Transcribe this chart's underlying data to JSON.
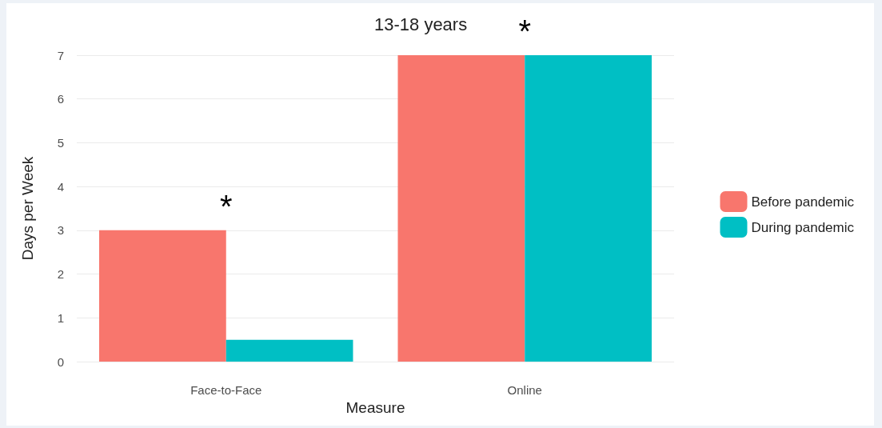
{
  "chart_data": {
    "type": "bar",
    "title": "13-18 years",
    "xlabel": "Measure",
    "ylabel": "Days per Week",
    "categories": [
      "Face-to-Face",
      "Online"
    ],
    "series": [
      {
        "name": "Before pandemic",
        "color": "#f8766d",
        "values": [
          3,
          7
        ]
      },
      {
        "name": "During pandemic",
        "color": "#00bfc4",
        "values": [
          0.5,
          7
        ]
      }
    ],
    "ylim": [
      0,
      7
    ],
    "yticks": [
      0,
      1,
      2,
      3,
      4,
      5,
      6,
      7
    ],
    "grid": "y",
    "legend": "right",
    "annotations": [
      "*",
      "*"
    ]
  }
}
